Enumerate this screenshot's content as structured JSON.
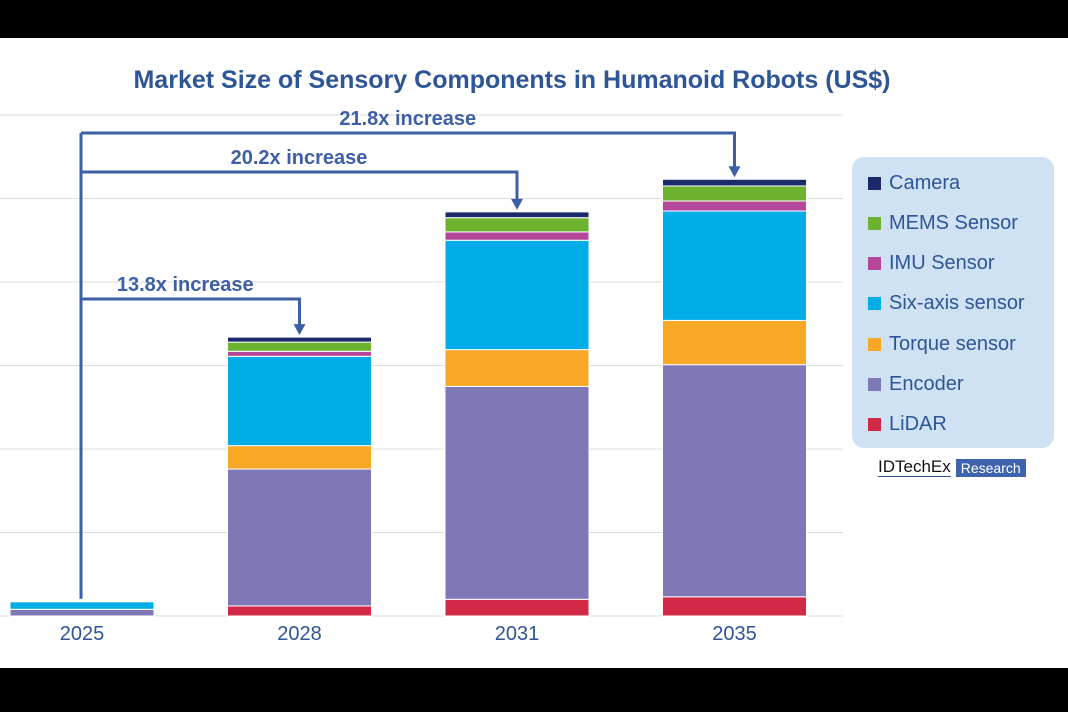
{
  "chart_data": {
    "type": "bar",
    "stacked": true,
    "title": "Market Size of Sensory Components in Humanoid Robots (US$)",
    "xlabel": "",
    "ylabel": "",
    "ylim": [
      0,
      6
    ],
    "grid": true,
    "legend_position": "right",
    "categories": [
      "2025",
      "2028",
      "2031",
      "2035"
    ],
    "series": [
      {
        "name": "LiDAR",
        "color": "#d22a46",
        "values": [
          0.0,
          0.12,
          0.2,
          0.23
        ]
      },
      {
        "name": "Encoder",
        "color": "#7f78b6",
        "values": [
          0.08,
          1.64,
          2.55,
          2.78
        ]
      },
      {
        "name": "Torque sensor",
        "color": "#f9a825",
        "values": [
          0.0,
          0.28,
          0.44,
          0.53
        ]
      },
      {
        "name": "Six-axis sensor",
        "color": "#00ade6",
        "values": [
          0.09,
          1.07,
          1.31,
          1.31
        ]
      },
      {
        "name": "IMU Sensor",
        "color": "#b5479a",
        "values": [
          0.0,
          0.06,
          0.1,
          0.12
        ]
      },
      {
        "name": "MEMS Sensor",
        "color": "#6cb22f",
        "values": [
          0.0,
          0.11,
          0.17,
          0.18
        ]
      },
      {
        "name": "Camera",
        "color": "#1b2a6b",
        "values": [
          0.0,
          0.06,
          0.07,
          0.08
        ]
      }
    ],
    "annotations": [
      {
        "text": "13.8x increase",
        "from": "2025",
        "to": "2028"
      },
      {
        "text": "20.2x increase",
        "from": "2025",
        "to": "2031"
      },
      {
        "text": "21.8x increase",
        "from": "2025",
        "to": "2035"
      }
    ]
  },
  "colors": {
    "title": "#2e5597",
    "annotation": "#3d5fa5",
    "legend_bg": "#cfe2f3"
  },
  "logo": {
    "name": "IDTechEx",
    "tag": "Research"
  }
}
